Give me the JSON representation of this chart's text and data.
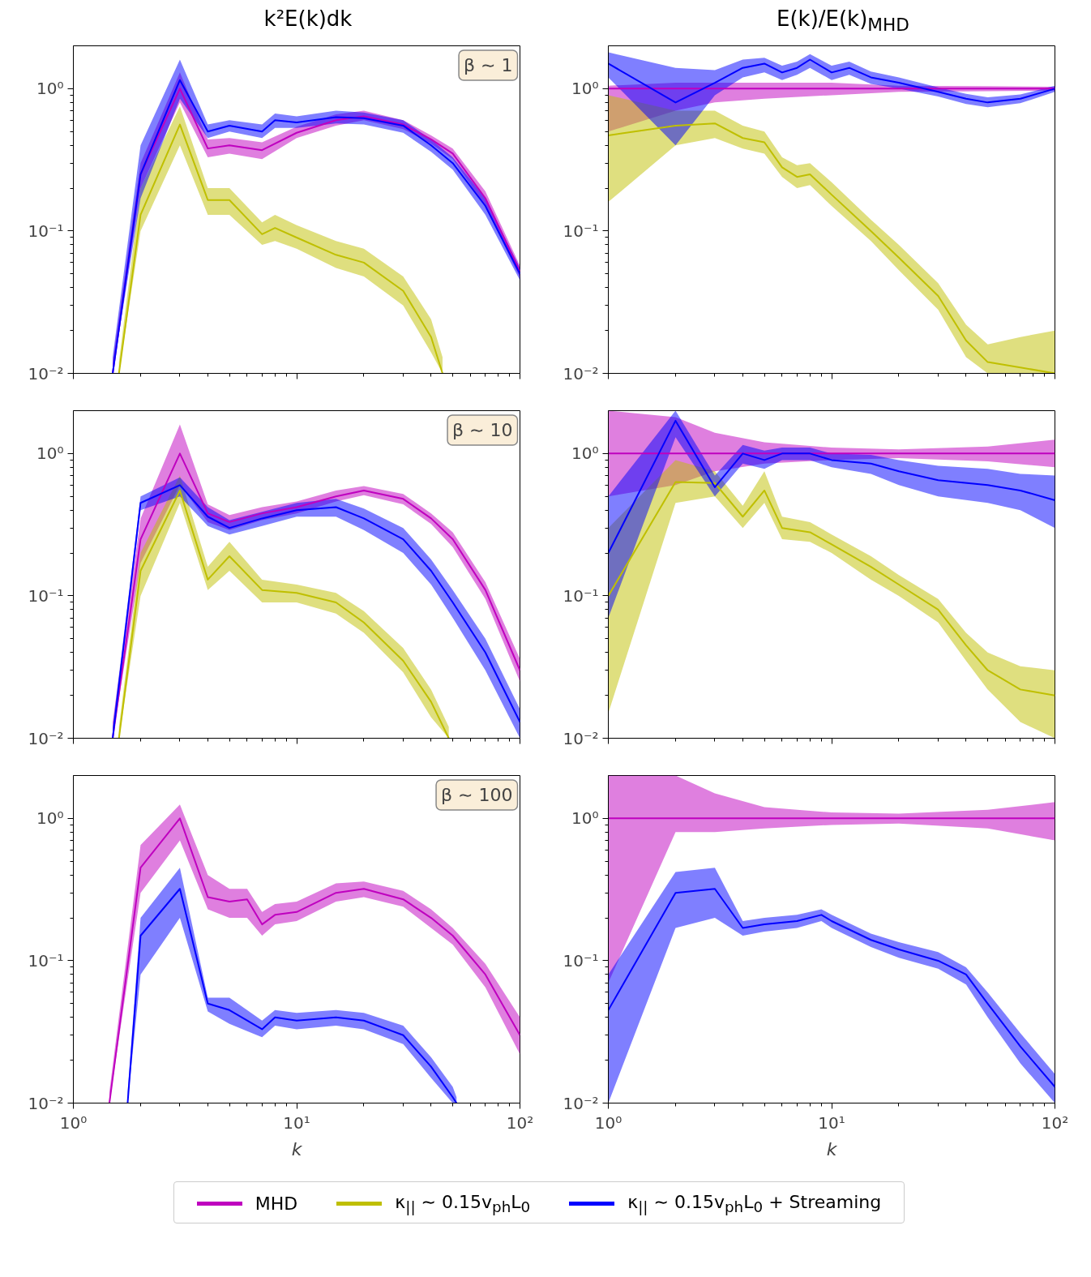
{
  "chart_data": [
    {
      "type": "line",
      "title": "k²E(k)dk",
      "annotations": [
        "β ∼ 1"
      ],
      "legend": "bottom",
      "log": "xy",
      "grid": false,
      "tick_labels": "y",
      "xlim": [
        1,
        100
      ],
      "ylim": [
        0.01,
        2
      ],
      "xticks": [
        {
          "value": 1,
          "label": null
        },
        {
          "value": 10,
          "label": null
        },
        {
          "value": 100,
          "label": null
        }
      ],
      "yticks": [
        {
          "value": 0.01,
          "label": "10⁻²"
        },
        {
          "value": 0.1,
          "label": "10⁻¹"
        },
        {
          "value": 1,
          "label": "10⁰"
        }
      ],
      "series": [
        {
          "name": "MHD",
          "color": "#bf00bf",
          "x": [
            1.5,
            2,
            3,
            4,
            5,
            7,
            10,
            15,
            20,
            30,
            40,
            50,
            70,
            100
          ],
          "values": [
            0.01,
            0.25,
            1.0,
            0.38,
            0.4,
            0.37,
            0.49,
            0.6,
            0.64,
            0.56,
            0.44,
            0.35,
            0.17,
            0.052
          ],
          "lower": [
            0.01,
            0.2,
            0.8,
            0.33,
            0.35,
            0.32,
            0.45,
            0.55,
            0.6,
            0.52,
            0.41,
            0.32,
            0.15,
            0.047
          ],
          "upper": [
            0.012,
            0.3,
            1.3,
            0.44,
            0.45,
            0.42,
            0.54,
            0.66,
            0.7,
            0.6,
            0.47,
            0.38,
            0.19,
            0.057
          ]
        },
        {
          "name": "κ$_{||}$ ∼ 0.15v$_{ph}$L$_{0}$",
          "color": "#bfbf00",
          "x": [
            1.6,
            2,
            3,
            4,
            5,
            7,
            8,
            10,
            15,
            20,
            30,
            40,
            45
          ],
          "values": [
            0.01,
            0.13,
            0.56,
            0.165,
            0.165,
            0.095,
            0.105,
            0.09,
            0.068,
            0.06,
            0.038,
            0.018,
            0.01
          ],
          "lower": [
            0.01,
            0.1,
            0.4,
            0.13,
            0.13,
            0.08,
            0.085,
            0.075,
            0.055,
            0.048,
            0.03,
            0.014,
            0.01
          ],
          "upper": [
            0.012,
            0.2,
            0.75,
            0.2,
            0.2,
            0.115,
            0.13,
            0.11,
            0.085,
            0.075,
            0.048,
            0.024,
            0.013
          ]
        },
        {
          "name": "κ$_{||}$ ∼ 0.15v$_{ph}$L$_{0}$ + Streaming",
          "color": "#0000ff",
          "x": [
            1.5,
            2,
            3,
            4,
            5,
            7,
            8,
            10,
            15,
            20,
            30,
            40,
            50,
            70,
            100
          ],
          "values": [
            0.01,
            0.25,
            1.15,
            0.5,
            0.55,
            0.5,
            0.6,
            0.58,
            0.63,
            0.62,
            0.55,
            0.4,
            0.3,
            0.15,
            0.05
          ],
          "lower": [
            0.01,
            0.17,
            0.85,
            0.45,
            0.5,
            0.45,
            0.53,
            0.53,
            0.57,
            0.56,
            0.49,
            0.36,
            0.27,
            0.13,
            0.045
          ],
          "upper": [
            0.013,
            0.4,
            1.6,
            0.56,
            0.6,
            0.56,
            0.67,
            0.64,
            0.7,
            0.68,
            0.6,
            0.44,
            0.33,
            0.17,
            0.055
          ]
        }
      ]
    },
    {
      "type": "line",
      "title": "E(k)/E(k)$_{MHD}$",
      "log": "xy",
      "grid": false,
      "tick_labels": "y",
      "xlim": [
        1,
        100
      ],
      "ylim": [
        0.01,
        2
      ],
      "xticks": [
        {
          "value": 1,
          "label": null
        },
        {
          "value": 10,
          "label": null
        },
        {
          "value": 100,
          "label": null
        }
      ],
      "yticks": [
        {
          "value": 0.01,
          "label": "10⁻²"
        },
        {
          "value": 0.1,
          "label": "10⁻¹"
        },
        {
          "value": 1,
          "label": "10⁰"
        }
      ],
      "series": [
        {
          "color": "#bf00bf",
          "x": [
            1,
            2,
            3,
            5,
            10,
            20,
            50,
            100
          ],
          "values": [
            1,
            1,
            1,
            1,
            1,
            1,
            1,
            1
          ],
          "lower": [
            0.5,
            0.7,
            0.8,
            0.85,
            0.9,
            0.95,
            0.96,
            0.97
          ],
          "upper": [
            1.05,
            1.1,
            1.1,
            1.1,
            1.1,
            1.05,
            1.04,
            1.03
          ]
        },
        {
          "color": "#bfbf00",
          "x": [
            1,
            2,
            3,
            4,
            5,
            6,
            7,
            8,
            10,
            15,
            20,
            30,
            40,
            50,
            70,
            100
          ],
          "values": [
            0.47,
            0.55,
            0.57,
            0.45,
            0.42,
            0.28,
            0.24,
            0.25,
            0.18,
            0.1,
            0.065,
            0.035,
            0.017,
            0.012,
            0.011,
            0.01
          ],
          "lower": [
            0.16,
            0.4,
            0.45,
            0.38,
            0.35,
            0.24,
            0.2,
            0.21,
            0.15,
            0.085,
            0.053,
            0.028,
            0.013,
            0.01,
            0.01,
            0.01
          ],
          "upper": [
            0.9,
            0.7,
            0.7,
            0.55,
            0.5,
            0.33,
            0.29,
            0.3,
            0.22,
            0.12,
            0.08,
            0.043,
            0.022,
            0.016,
            0.018,
            0.02
          ]
        },
        {
          "color": "#0000ff",
          "x": [
            1,
            2,
            3,
            4,
            5,
            6,
            7,
            8,
            10,
            12,
            15,
            20,
            30,
            40,
            50,
            70,
            100
          ],
          "values": [
            1.5,
            0.8,
            1.1,
            1.4,
            1.5,
            1.3,
            1.4,
            1.6,
            1.3,
            1.4,
            1.2,
            1.1,
            0.95,
            0.85,
            0.8,
            0.85,
            1.0
          ],
          "lower": [
            1.2,
            0.4,
            0.9,
            1.2,
            1.3,
            1.15,
            1.25,
            1.4,
            1.15,
            1.25,
            1.08,
            1.0,
            0.88,
            0.78,
            0.74,
            0.79,
            0.95
          ],
          "upper": [
            1.8,
            1.4,
            1.35,
            1.6,
            1.65,
            1.45,
            1.55,
            1.75,
            1.45,
            1.55,
            1.32,
            1.2,
            1.02,
            0.92,
            0.87,
            0.91,
            1.05
          ]
        }
      ]
    },
    {
      "type": "line",
      "annotations": [
        "β ∼ 10"
      ],
      "log": "xy",
      "grid": false,
      "tick_labels": "y",
      "xlim": [
        1,
        100
      ],
      "ylim": [
        0.01,
        2
      ],
      "xticks": [
        {
          "value": 1,
          "label": null
        },
        {
          "value": 10,
          "label": null
        },
        {
          "value": 100,
          "label": null
        }
      ],
      "yticks": [
        {
          "value": 0.01,
          "label": "10⁻²"
        },
        {
          "value": 0.1,
          "label": "10⁻¹"
        },
        {
          "value": 1,
          "label": "10⁰"
        }
      ],
      "series": [
        {
          "color": "#bf00bf",
          "x": [
            1.5,
            2,
            3,
            4,
            5,
            7,
            10,
            15,
            20,
            30,
            40,
            50,
            70,
            100
          ],
          "values": [
            0.01,
            0.25,
            1.0,
            0.38,
            0.33,
            0.38,
            0.42,
            0.5,
            0.55,
            0.48,
            0.35,
            0.25,
            0.11,
            0.03
          ],
          "lower": [
            0.01,
            0.17,
            0.6,
            0.33,
            0.29,
            0.34,
            0.38,
            0.46,
            0.51,
            0.44,
            0.32,
            0.22,
            0.095,
            0.025
          ],
          "upper": [
            0.013,
            0.35,
            1.6,
            0.44,
            0.37,
            0.42,
            0.46,
            0.55,
            0.59,
            0.52,
            0.38,
            0.28,
            0.125,
            0.036
          ]
        },
        {
          "color": "#bfbf00",
          "x": [
            1.6,
            2,
            3,
            4,
            5,
            7,
            10,
            15,
            20,
            30,
            40,
            48
          ],
          "values": [
            0.01,
            0.15,
            0.55,
            0.13,
            0.19,
            0.11,
            0.105,
            0.09,
            0.065,
            0.035,
            0.018,
            0.01
          ],
          "lower": [
            0.01,
            0.1,
            0.45,
            0.11,
            0.15,
            0.09,
            0.09,
            0.075,
            0.055,
            0.029,
            0.014,
            0.01
          ],
          "upper": [
            0.012,
            0.2,
            0.7,
            0.16,
            0.24,
            0.13,
            0.12,
            0.105,
            0.078,
            0.043,
            0.022,
            0.012
          ]
        },
        {
          "color": "#0000ff",
          "x": [
            1.5,
            2,
            3,
            4,
            5,
            7,
            10,
            15,
            20,
            30,
            40,
            50,
            70,
            100
          ],
          "values": [
            0.01,
            0.45,
            0.6,
            0.36,
            0.3,
            0.35,
            0.4,
            0.42,
            0.35,
            0.25,
            0.15,
            0.09,
            0.04,
            0.013
          ],
          "lower": [
            0.01,
            0.4,
            0.5,
            0.31,
            0.27,
            0.31,
            0.36,
            0.36,
            0.29,
            0.2,
            0.12,
            0.07,
            0.03,
            0.01
          ],
          "upper": [
            0.012,
            0.5,
            0.68,
            0.42,
            0.34,
            0.39,
            0.45,
            0.48,
            0.41,
            0.3,
            0.18,
            0.11,
            0.05,
            0.016
          ]
        }
      ]
    },
    {
      "type": "line",
      "log": "xy",
      "grid": false,
      "tick_labels": "y",
      "xlim": [
        1,
        100
      ],
      "ylim": [
        0.01,
        2
      ],
      "xticks": [
        {
          "value": 1,
          "label": null
        },
        {
          "value": 10,
          "label": null
        },
        {
          "value": 100,
          "label": null
        }
      ],
      "yticks": [
        {
          "value": 0.01,
          "label": "10⁻²"
        },
        {
          "value": 0.1,
          "label": "10⁻¹"
        },
        {
          "value": 1,
          "label": "10⁰"
        }
      ],
      "series": [
        {
          "color": "#bf00bf",
          "x": [
            1,
            2,
            3,
            5,
            10,
            20,
            50,
            100
          ],
          "values": [
            1,
            1,
            1,
            1,
            1,
            1,
            1,
            1
          ],
          "lower": [
            0.5,
            0.6,
            0.75,
            0.85,
            0.9,
            0.93,
            0.88,
            0.8
          ],
          "upper": [
            2.0,
            1.8,
            1.4,
            1.2,
            1.1,
            1.07,
            1.12,
            1.25
          ]
        },
        {
          "color": "#bfbf00",
          "x": [
            1,
            2,
            3,
            4,
            5,
            6,
            8,
            10,
            15,
            20,
            30,
            40,
            50,
            70,
            100
          ],
          "values": [
            0.1,
            0.63,
            0.62,
            0.36,
            0.55,
            0.3,
            0.28,
            0.23,
            0.16,
            0.12,
            0.08,
            0.045,
            0.03,
            0.022,
            0.02
          ],
          "lower": [
            0.015,
            0.45,
            0.5,
            0.3,
            0.45,
            0.25,
            0.24,
            0.2,
            0.13,
            0.1,
            0.065,
            0.035,
            0.022,
            0.013,
            0.01
          ],
          "upper": [
            0.3,
            0.9,
            0.75,
            0.43,
            0.75,
            0.36,
            0.33,
            0.27,
            0.19,
            0.14,
            0.095,
            0.055,
            0.04,
            0.032,
            0.03
          ]
        },
        {
          "color": "#0000ff",
          "x": [
            1,
            2,
            3,
            4,
            5,
            6,
            8,
            10,
            15,
            20,
            30,
            50,
            70,
            100
          ],
          "values": [
            0.2,
            1.7,
            0.58,
            1.0,
            0.9,
            1.0,
            1.0,
            0.9,
            0.85,
            0.75,
            0.65,
            0.6,
            0.55,
            0.47
          ],
          "lower": [
            0.07,
            1.3,
            0.5,
            0.85,
            0.78,
            0.9,
            0.9,
            0.8,
            0.72,
            0.6,
            0.5,
            0.45,
            0.4,
            0.3
          ],
          "upper": [
            0.5,
            2.0,
            0.7,
            1.15,
            1.05,
            1.1,
            1.1,
            1.0,
            0.98,
            0.9,
            0.82,
            0.78,
            0.72,
            0.7
          ]
        }
      ]
    },
    {
      "type": "line",
      "xlabel": "k",
      "annotations": [
        "β ∼ 100"
      ],
      "log": "xy",
      "grid": false,
      "xlim": [
        1,
        100
      ],
      "ylim": [
        0.01,
        2
      ],
      "xticks": [
        {
          "value": 1,
          "label": "10⁰"
        },
        {
          "value": 10,
          "label": "10¹"
        },
        {
          "value": 100,
          "label": "10²"
        }
      ],
      "yticks": [
        {
          "value": 0.01,
          "label": "10⁻²"
        },
        {
          "value": 0.1,
          "label": "10⁻¹"
        },
        {
          "value": 1,
          "label": "10⁰"
        }
      ],
      "series": [
        {
          "color": "#bf00bf",
          "x": [
            1.45,
            2,
            3,
            4,
            5,
            6,
            7,
            8,
            10,
            15,
            20,
            30,
            40,
            50,
            70,
            100
          ],
          "values": [
            0.01,
            0.45,
            1.0,
            0.28,
            0.26,
            0.27,
            0.18,
            0.21,
            0.22,
            0.3,
            0.32,
            0.27,
            0.2,
            0.15,
            0.08,
            0.03
          ],
          "lower": [
            0.01,
            0.3,
            0.7,
            0.23,
            0.2,
            0.2,
            0.15,
            0.18,
            0.19,
            0.26,
            0.28,
            0.24,
            0.17,
            0.13,
            0.065,
            0.022
          ],
          "upper": [
            0.012,
            0.65,
            1.25,
            0.4,
            0.32,
            0.32,
            0.22,
            0.25,
            0.26,
            0.35,
            0.36,
            0.31,
            0.23,
            0.17,
            0.095,
            0.04
          ]
        },
        {
          "color": "#0000ff",
          "x": [
            1.75,
            2,
            3,
            4,
            5,
            7,
            8,
            10,
            15,
            20,
            30,
            40,
            50,
            52
          ],
          "values": [
            0.01,
            0.15,
            0.32,
            0.05,
            0.045,
            0.033,
            0.04,
            0.038,
            0.04,
            0.038,
            0.03,
            0.018,
            0.011,
            0.01
          ],
          "lower": [
            0.01,
            0.08,
            0.2,
            0.044,
            0.036,
            0.029,
            0.035,
            0.033,
            0.035,
            0.033,
            0.026,
            0.015,
            0.01,
            0.01
          ],
          "upper": [
            0.012,
            0.2,
            0.45,
            0.055,
            0.055,
            0.038,
            0.045,
            0.043,
            0.045,
            0.043,
            0.035,
            0.021,
            0.013,
            0.011
          ]
        }
      ]
    },
    {
      "type": "line",
      "xlabel": "k",
      "log": "xy",
      "grid": false,
      "xlim": [
        1,
        100
      ],
      "ylim": [
        0.01,
        2
      ],
      "xticks": [
        {
          "value": 1,
          "label": "10⁰"
        },
        {
          "value": 10,
          "label": "10¹"
        },
        {
          "value": 100,
          "label": "10²"
        }
      ],
      "yticks": [
        {
          "value": 0.01,
          "label": "10⁻²"
        },
        {
          "value": 0.1,
          "label": "10⁻¹"
        },
        {
          "value": 1,
          "label": "10⁰"
        }
      ],
      "series": [
        {
          "color": "#bf00bf",
          "x": [
            1,
            2,
            3,
            5,
            10,
            20,
            50,
            100
          ],
          "values": [
            1,
            1,
            1,
            1,
            1,
            1,
            1,
            1
          ],
          "lower": [
            0.07,
            0.8,
            0.8,
            0.85,
            0.9,
            0.92,
            0.85,
            0.7
          ],
          "upper": [
            2.0,
            2.0,
            1.5,
            1.2,
            1.1,
            1.08,
            1.15,
            1.3
          ]
        },
        {
          "color": "#0000ff",
          "x": [
            1,
            2,
            3,
            4,
            5,
            7,
            9,
            10,
            15,
            20,
            30,
            40,
            50,
            70,
            100
          ],
          "values": [
            0.045,
            0.3,
            0.32,
            0.17,
            0.18,
            0.19,
            0.21,
            0.19,
            0.14,
            0.12,
            0.1,
            0.08,
            0.05,
            0.025,
            0.013
          ],
          "lower": [
            0.01,
            0.17,
            0.2,
            0.15,
            0.16,
            0.17,
            0.19,
            0.17,
            0.125,
            0.105,
            0.088,
            0.068,
            0.04,
            0.019,
            0.01
          ],
          "upper": [
            0.08,
            0.42,
            0.45,
            0.19,
            0.2,
            0.21,
            0.23,
            0.21,
            0.155,
            0.135,
            0.115,
            0.09,
            0.06,
            0.031,
            0.016
          ]
        }
      ]
    }
  ]
}
